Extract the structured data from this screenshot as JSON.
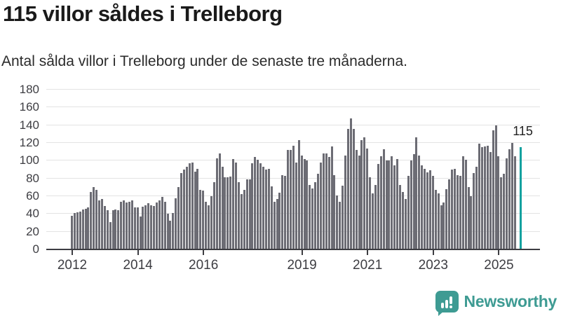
{
  "header": {
    "title": "115 villor såldes i Trelleborg",
    "subtitle": "Antal sålda villor i Trelleborg under de senaste tre månaderna."
  },
  "chart_data": {
    "type": "bar",
    "title": "115 villor såldes i Trelleborg",
    "subtitle": "Antal sålda villor i Trelleborg under de senaste tre månaderna.",
    "ylim": [
      0,
      180
    ],
    "y_ticks": [
      0,
      20,
      40,
      60,
      80,
      100,
      120,
      140,
      160,
      180
    ],
    "grid": "horizontal",
    "x_ticks": [
      {
        "label": "2012",
        "index": 0
      },
      {
        "label": "2014",
        "index": 24
      },
      {
        "label": "2016",
        "index": 48
      },
      {
        "label": "2019",
        "index": 84
      },
      {
        "label": "2021",
        "index": 108
      },
      {
        "label": "2023",
        "index": 132
      },
      {
        "label": "2025",
        "index": 156
      }
    ],
    "series_start": "2012",
    "values": [
      38,
      41,
      42,
      43,
      45,
      46,
      47,
      65,
      70,
      67,
      55,
      57,
      49,
      44,
      31,
      44,
      45,
      44,
      54,
      55,
      53,
      54,
      55,
      47,
      47,
      37,
      48,
      50,
      52,
      50,
      49,
      53,
      55,
      59,
      54,
      40,
      32,
      41,
      58,
      70,
      86,
      90,
      93,
      97,
      98,
      88,
      91,
      67,
      66,
      54,
      50,
      60,
      76,
      103,
      108,
      93,
      81,
      81,
      82,
      102,
      98,
      76,
      62,
      67,
      79,
      79,
      97,
      104,
      101,
      97,
      93,
      90,
      91,
      71,
      54,
      57,
      64,
      84,
      83,
      112,
      112,
      117,
      98,
      123,
      106,
      102,
      100,
      73,
      69,
      76,
      85,
      98,
      108,
      108,
      104,
      116,
      84,
      61,
      54,
      72,
      106,
      136,
      148,
      136,
      112,
      106,
      123,
      126,
      114,
      81,
      63,
      73,
      96,
      105,
      113,
      100,
      100,
      105,
      95,
      102,
      73,
      65,
      57,
      83,
      100,
      107,
      126,
      106,
      95,
      91,
      87,
      89,
      83,
      67,
      63,
      50,
      53,
      68,
      79,
      90,
      91,
      84,
      83,
      105,
      101,
      70,
      60,
      86,
      93,
      119,
      115,
      116,
      117,
      110,
      134,
      140,
      105,
      81,
      85,
      103,
      113,
      120,
      105
    ],
    "highlight": {
      "value": 115,
      "label": "115",
      "slot": 164
    },
    "colors": {
      "bar": "#6c6c74",
      "highlight": "#12a19f",
      "grid": "#e3e3e3",
      "axis": "#3d3d42",
      "brand": "#3e9b93"
    }
  },
  "footer": {
    "brand": "Newsworthy"
  }
}
